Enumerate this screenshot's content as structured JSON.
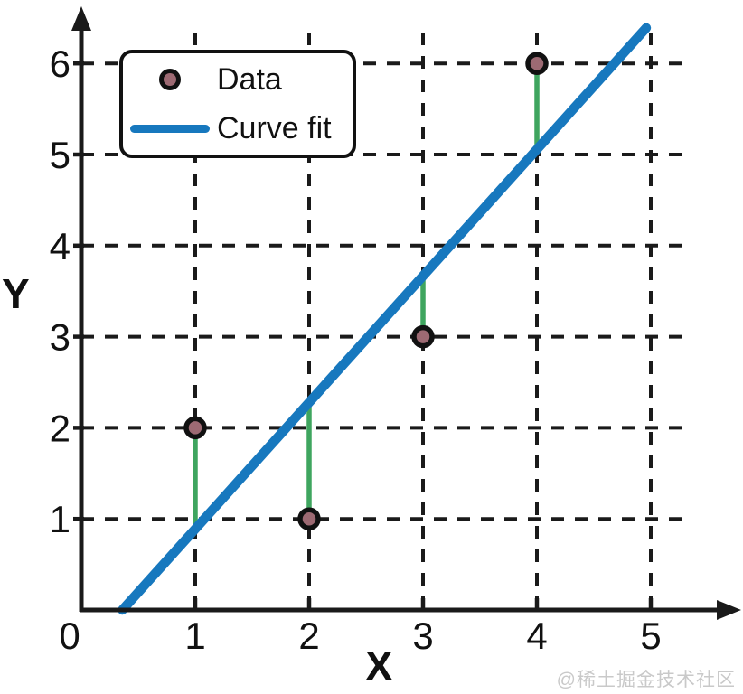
{
  "page": {
    "background": "#ffffff"
  },
  "watermark": {
    "text": "@稀土掘金技术社区",
    "color": "#c9c9c9"
  },
  "chart_data": {
    "type": "scatter",
    "title": "",
    "xlabel": "X",
    "ylabel": "Y",
    "xlim": [
      0,
      5.7
    ],
    "ylim": [
      0,
      6.6
    ],
    "x_ticks": [
      0,
      1,
      2,
      3,
      4,
      5
    ],
    "y_ticks": [
      1,
      2,
      3,
      4,
      5,
      6
    ],
    "grid": "dashed-black",
    "axis_color": "#1a1a1a",
    "legend_position": "upper-left",
    "series": [
      {
        "name": "Data",
        "type": "scatter",
        "x": [
          1,
          2,
          3,
          4
        ],
        "y": [
          2,
          1,
          3,
          6
        ],
        "marker_fill": "#9d6a73",
        "marker_edge": "#111111"
      },
      {
        "name": "Curve fit",
        "type": "line",
        "color": "#1778be",
        "slope": 1.39,
        "intercept": -0.5,
        "x": [
          0.36,
          4.96
        ],
        "y": [
          0,
          6.39
        ]
      },
      {
        "name": "residuals",
        "type": "segments",
        "color": "#3fa55f",
        "segments": [
          {
            "x": 1,
            "y_point": 2,
            "y_fit": 0.89
          },
          {
            "x": 2,
            "y_point": 1,
            "y_fit": 2.28
          },
          {
            "x": 3,
            "y_point": 3,
            "y_fit": 3.67
          },
          {
            "x": 4,
            "y_point": 6,
            "y_fit": 5.06
          }
        ]
      }
    ],
    "legend": [
      {
        "label": "Data",
        "swatch": "circle-marker"
      },
      {
        "label": "Curve fit",
        "swatch": "thick-line"
      }
    ]
  }
}
